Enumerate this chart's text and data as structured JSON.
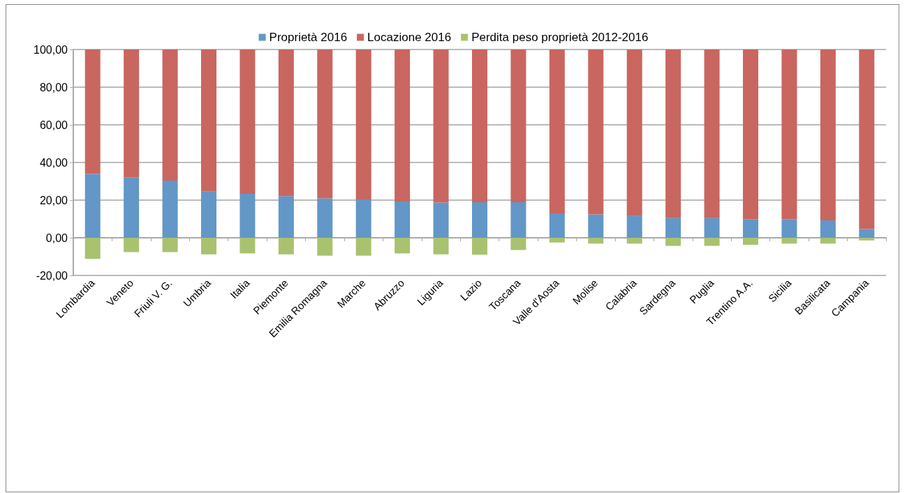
{
  "chart_data": {
    "type": "bar",
    "stacked": true,
    "legend": "top",
    "grid": "y",
    "categories": [
      "Lombardia",
      "Veneto",
      "Friuli V. G.",
      "Umbria",
      "Italia",
      "Piemonte",
      "Emilia Romagna",
      "Marche",
      "Abruzzo",
      "Liguria",
      "Lazio",
      "Toscana",
      "Valle d'Aosta",
      "Molise",
      "Calabria",
      "Sardegna",
      "Puglia",
      "Trentino A.A.",
      "Sicilia",
      "Basilicata",
      "Campania"
    ],
    "series": [
      {
        "name": "Proprietà 2016",
        "color": "#6297c7",
        "values": [
          33.9,
          32.1,
          30.4,
          24.5,
          23.3,
          22.1,
          20.9,
          20.4,
          19.3,
          18.7,
          18.9,
          18.9,
          13.0,
          12.4,
          11.8,
          10.5,
          10.5,
          9.9,
          9.9,
          9.3,
          4.7
        ]
      },
      {
        "name": "Locazione 2016",
        "color": "#c96660",
        "values": [
          66.1,
          67.9,
          69.6,
          75.5,
          76.7,
          77.9,
          79.1,
          79.6,
          80.7,
          81.3,
          81.1,
          81.1,
          87.0,
          87.6,
          88.2,
          89.5,
          89.5,
          90.1,
          90.1,
          90.7,
          95.3
        ]
      },
      {
        "name": "Perdita peso proprietà 2012-2016",
        "color": "#a9c26f",
        "values": [
          -11.2,
          -7.6,
          -7.6,
          -8.8,
          -8.3,
          -8.8,
          -9.5,
          -9.5,
          -8.3,
          -8.8,
          -9.0,
          -6.5,
          -2.5,
          -3.1,
          -3.1,
          -4.3,
          -4.3,
          -3.7,
          -3.1,
          -3.1,
          -1.4
        ]
      }
    ],
    "ylim": [
      -20,
      100
    ],
    "yticks": [
      {
        "value": -20,
        "label": "-20,00"
      },
      {
        "value": 0,
        "label": "0,00"
      },
      {
        "value": 20,
        "label": "20,00"
      },
      {
        "value": 40,
        "label": "40,00"
      },
      {
        "value": 60,
        "label": "60,00"
      },
      {
        "value": 80,
        "label": "80,00"
      },
      {
        "value": 100,
        "label": "100,00"
      }
    ]
  }
}
